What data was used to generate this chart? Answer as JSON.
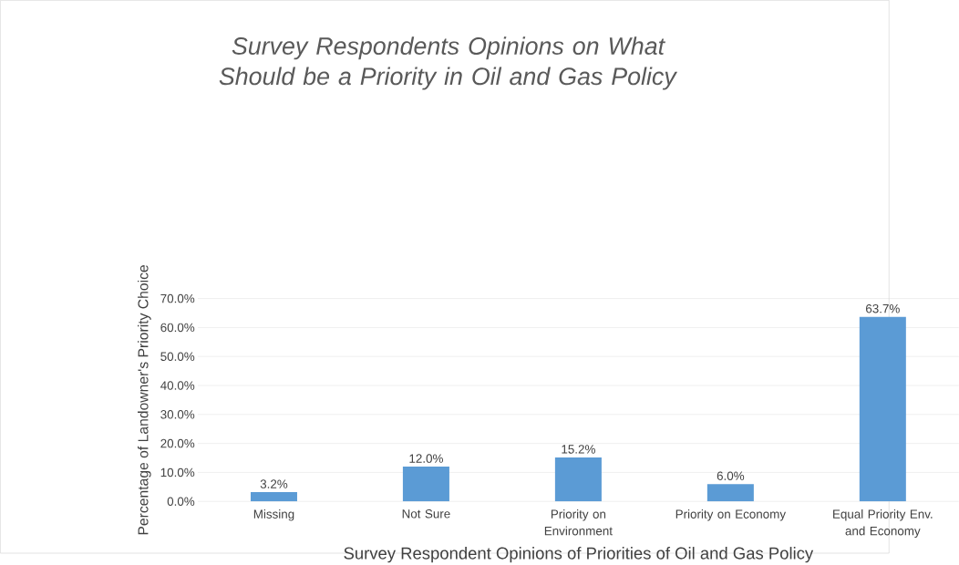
{
  "chart_data": {
    "type": "bar",
    "title": "*Survey Respondents Opinions on What Should be a Priority in Oil and Gas Policy*",
    "xlabel": "Survey Respondent Opinions of Priorities of Oil and Gas Policy",
    "ylabel": "Percentage of Landowner's Priority Choice",
    "categories": [
      "Missing",
      "Not Sure",
      "Priority on Environment",
      "Priority on Economy",
      "Equal Priority Env. and Economy"
    ],
    "values": [
      3.2,
      12.0,
      15.2,
      6.0,
      63.7
    ],
    "value_labels": [
      "3.2%",
      "12.0%",
      "15.2%",
      "6.0%",
      "63.7%"
    ],
    "color": "#5b9bd5",
    "ylim": [
      0,
      70
    ],
    "yticks": [
      {
        "value": 0,
        "label": "0.0%"
      },
      {
        "value": 10,
        "label": "10.0%"
      },
      {
        "value": 20,
        "label": "20.0%"
      },
      {
        "value": 30,
        "label": "30.0%"
      },
      {
        "value": 40,
        "label": "40.0%"
      },
      {
        "value": 50,
        "label": "50.0%"
      },
      {
        "value": 60,
        "label": "60.0%"
      },
      {
        "value": 70,
        "label": "70.0%"
      }
    ],
    "grid": "y"
  }
}
